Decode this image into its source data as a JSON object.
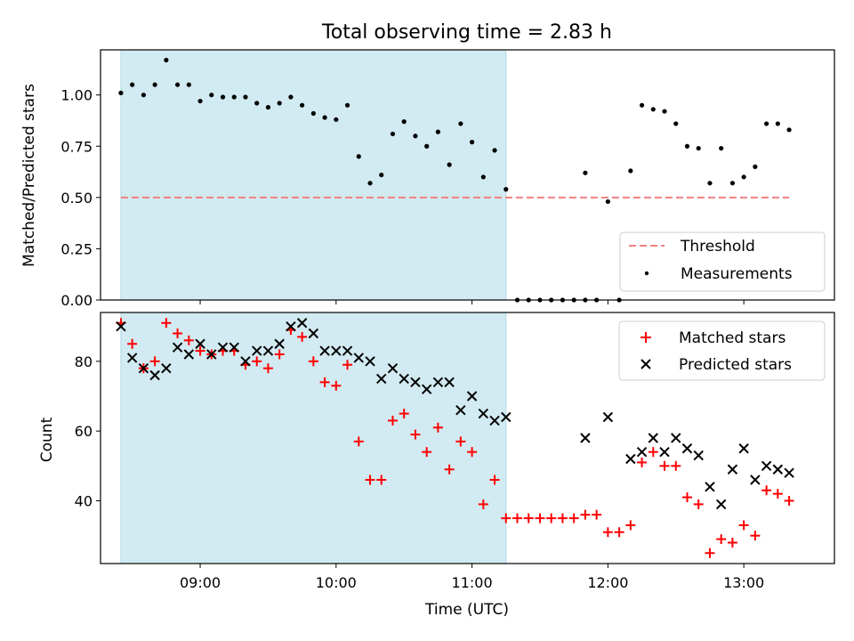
{
  "chart_data": [
    {
      "type": "scatter",
      "title": "Total observing time = 2.83 h",
      "ylabel": "Matched/Predicted stars",
      "xlabel": "",
      "xlim": [
        "08:16",
        "13:40"
      ],
      "ylim": [
        0,
        1.22
      ],
      "yticks": [
        "0.00",
        "0.25",
        "0.50",
        "0.75",
        "1.00"
      ],
      "shaded_interval": [
        "08:25",
        "11:15"
      ],
      "shaded_color": "#add8e6",
      "threshold": {
        "name": "Threshold",
        "y": 0.5,
        "x_range": [
          "08:25",
          "13:20"
        ],
        "color": "#f08080",
        "style": "dashed"
      },
      "series": [
        {
          "name": "Measurements",
          "color": "#000000",
          "marker": "dot",
          "points": [
            [
              "08:25",
              1.01
            ],
            [
              "08:30",
              1.05
            ],
            [
              "08:35",
              1.0
            ],
            [
              "08:40",
              1.05
            ],
            [
              "08:45",
              1.17
            ],
            [
              "08:50",
              1.05
            ],
            [
              "08:55",
              1.05
            ],
            [
              "09:00",
              0.97
            ],
            [
              "09:05",
              1.0
            ],
            [
              "09:10",
              0.99
            ],
            [
              "09:15",
              0.99
            ],
            [
              "09:20",
              0.99
            ],
            [
              "09:25",
              0.96
            ],
            [
              "09:30",
              0.94
            ],
            [
              "09:35",
              0.96
            ],
            [
              "09:40",
              0.99
            ],
            [
              "09:45",
              0.95
            ],
            [
              "09:50",
              0.91
            ],
            [
              "09:55",
              0.89
            ],
            [
              "10:00",
              0.88
            ],
            [
              "10:05",
              0.95
            ],
            [
              "10:10",
              0.7
            ],
            [
              "10:15",
              0.57
            ],
            [
              "10:20",
              0.61
            ],
            [
              "10:25",
              0.81
            ],
            [
              "10:30",
              0.87
            ],
            [
              "10:35",
              0.8
            ],
            [
              "10:40",
              0.75
            ],
            [
              "10:45",
              0.82
            ],
            [
              "10:50",
              0.66
            ],
            [
              "10:55",
              0.86
            ],
            [
              "11:00",
              0.77
            ],
            [
              "11:05",
              0.6
            ],
            [
              "11:10",
              0.73
            ],
            [
              "11:15",
              0.54
            ],
            [
              "11:20",
              0.0
            ],
            [
              "11:25",
              0.0
            ],
            [
              "11:30",
              0.0
            ],
            [
              "11:35",
              0.0
            ],
            [
              "11:40",
              0.0
            ],
            [
              "11:45",
              0.0
            ],
            [
              "11:50",
              0.0
            ],
            [
              "11:55",
              0.0
            ],
            [
              "11:50",
              0.62
            ],
            [
              "12:00",
              0.48
            ],
            [
              "12:05",
              0.0
            ],
            [
              "12:10",
              0.63
            ],
            [
              "12:15",
              0.95
            ],
            [
              "12:20",
              0.93
            ],
            [
              "12:25",
              0.92
            ],
            [
              "12:30",
              0.86
            ],
            [
              "12:35",
              0.75
            ],
            [
              "12:40",
              0.74
            ],
            [
              "12:45",
              0.57
            ],
            [
              "12:50",
              0.74
            ],
            [
              "12:55",
              0.57
            ],
            [
              "13:00",
              0.6
            ],
            [
              "13:05",
              0.65
            ],
            [
              "13:10",
              0.86
            ],
            [
              "13:15",
              0.86
            ],
            [
              "13:20",
              0.83
            ]
          ]
        }
      ],
      "legend_entries": [
        "Threshold",
        "Measurements"
      ],
      "legend_position": "lower-right"
    },
    {
      "type": "scatter",
      "title": "",
      "xlabel": "Time (UTC)",
      "ylabel": "Count",
      "xlim": [
        "08:16",
        "13:40"
      ],
      "ylim": [
        22,
        94
      ],
      "xticks": [
        "09:00",
        "10:00",
        "11:00",
        "12:00",
        "13:00"
      ],
      "yticks": [
        "40",
        "60",
        "80"
      ],
      "shaded_interval": [
        "08:25",
        "11:15"
      ],
      "shaded_color": "#add8e6",
      "series": [
        {
          "name": "Matched stars",
          "color": "#ff0000",
          "marker": "plus",
          "points": [
            [
              "08:25",
              91
            ],
            [
              "08:30",
              85
            ],
            [
              "08:35",
              78
            ],
            [
              "08:40",
              80
            ],
            [
              "08:45",
              91
            ],
            [
              "08:50",
              88
            ],
            [
              "08:55",
              86
            ],
            [
              "09:00",
              83
            ],
            [
              "09:05",
              82
            ],
            [
              "09:10",
              83
            ],
            [
              "09:15",
              83
            ],
            [
              "09:20",
              79
            ],
            [
              "09:25",
              80
            ],
            [
              "09:30",
              78
            ],
            [
              "09:35",
              82
            ],
            [
              "09:40",
              89
            ],
            [
              "09:45",
              87
            ],
            [
              "09:50",
              80
            ],
            [
              "09:55",
              74
            ],
            [
              "10:00",
              73
            ],
            [
              "10:05",
              79
            ],
            [
              "10:10",
              57
            ],
            [
              "10:15",
              46
            ],
            [
              "10:20",
              46
            ],
            [
              "10:25",
              63
            ],
            [
              "10:30",
              65
            ],
            [
              "10:35",
              59
            ],
            [
              "10:40",
              54
            ],
            [
              "10:45",
              61
            ],
            [
              "10:50",
              49
            ],
            [
              "10:55",
              57
            ],
            [
              "11:00",
              54
            ],
            [
              "11:05",
              39
            ],
            [
              "11:10",
              46
            ],
            [
              "11:15",
              35
            ],
            [
              "11:20",
              35
            ],
            [
              "11:25",
              35
            ],
            [
              "11:30",
              35
            ],
            [
              "11:35",
              35
            ],
            [
              "11:40",
              35
            ],
            [
              "11:45",
              35
            ],
            [
              "11:50",
              36
            ],
            [
              "11:55",
              36
            ],
            [
              "12:00",
              31
            ],
            [
              "12:05",
              31
            ],
            [
              "12:10",
              33
            ],
            [
              "12:15",
              51
            ],
            [
              "12:20",
              54
            ],
            [
              "12:25",
              50
            ],
            [
              "12:30",
              50
            ],
            [
              "12:35",
              41
            ],
            [
              "12:40",
              39
            ],
            [
              "12:45",
              25
            ],
            [
              "12:50",
              29
            ],
            [
              "12:55",
              28
            ],
            [
              "13:00",
              33
            ],
            [
              "13:05",
              30
            ],
            [
              "13:10",
              43
            ],
            [
              "13:15",
              42
            ],
            [
              "13:20",
              40
            ]
          ]
        },
        {
          "name": "Predicted stars",
          "color": "#000000",
          "marker": "x",
          "points": [
            [
              "08:25",
              90
            ],
            [
              "08:30",
              81
            ],
            [
              "08:35",
              78
            ],
            [
              "08:40",
              76
            ],
            [
              "08:45",
              78
            ],
            [
              "08:50",
              84
            ],
            [
              "08:55",
              82
            ],
            [
              "09:00",
              85
            ],
            [
              "09:05",
              82
            ],
            [
              "09:10",
              84
            ],
            [
              "09:15",
              84
            ],
            [
              "09:20",
              80
            ],
            [
              "09:25",
              83
            ],
            [
              "09:30",
              83
            ],
            [
              "09:35",
              85
            ],
            [
              "09:40",
              90
            ],
            [
              "09:45",
              91
            ],
            [
              "09:50",
              88
            ],
            [
              "09:55",
              83
            ],
            [
              "10:00",
              83
            ],
            [
              "10:05",
              83
            ],
            [
              "10:10",
              81
            ],
            [
              "10:15",
              80
            ],
            [
              "10:20",
              75
            ],
            [
              "10:25",
              78
            ],
            [
              "10:30",
              75
            ],
            [
              "10:35",
              74
            ],
            [
              "10:40",
              72
            ],
            [
              "10:45",
              74
            ],
            [
              "10:50",
              74
            ],
            [
              "10:55",
              66
            ],
            [
              "11:00",
              70
            ],
            [
              "11:05",
              65
            ],
            [
              "11:10",
              63
            ],
            [
              "11:15",
              64
            ],
            [
              "11:50",
              58
            ],
            [
              "12:00",
              64
            ],
            [
              "12:10",
              52
            ],
            [
              "12:15",
              54
            ],
            [
              "12:20",
              58
            ],
            [
              "12:25",
              54
            ],
            [
              "12:30",
              58
            ],
            [
              "12:35",
              55
            ],
            [
              "12:40",
              53
            ],
            [
              "12:45",
              44
            ],
            [
              "12:50",
              39
            ],
            [
              "12:55",
              49
            ],
            [
              "13:00",
              55
            ],
            [
              "13:05",
              46
            ],
            [
              "13:10",
              50
            ],
            [
              "13:15",
              49
            ],
            [
              "13:20",
              48
            ]
          ]
        }
      ],
      "legend_entries": [
        "Matched stars",
        "Predicted stars"
      ],
      "legend_position": "upper-right"
    }
  ]
}
